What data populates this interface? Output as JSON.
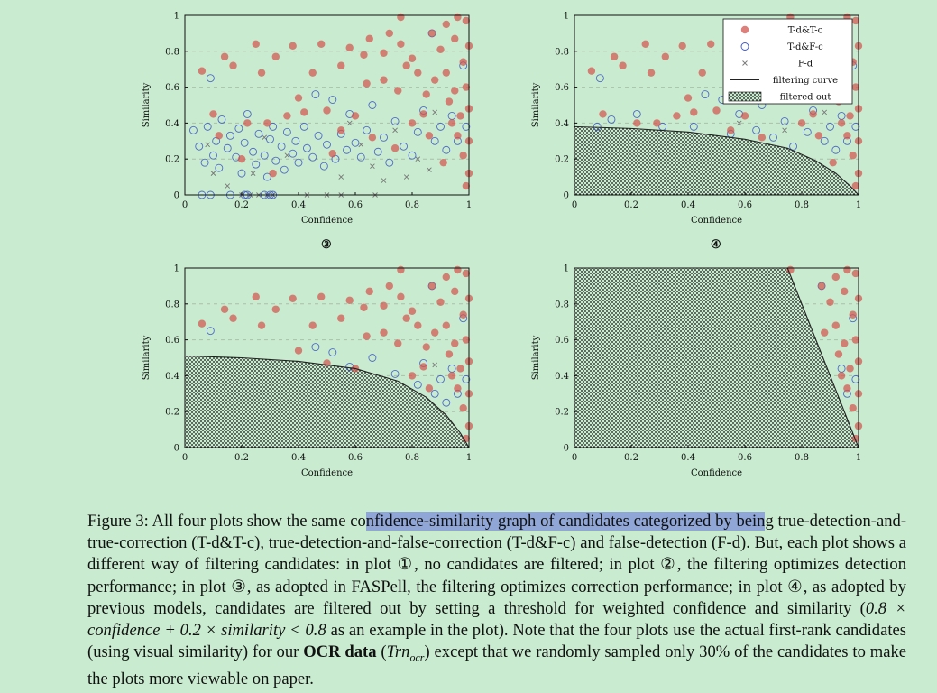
{
  "figure": {
    "axes": {
      "xlabel": "Confidence",
      "ylabel": "Similarity",
      "xticks": [
        "0",
        "0.2",
        "0.4",
        "0.6",
        "0.8",
        "1"
      ],
      "yticks": [
        "0",
        "0.2",
        "0.4",
        "0.6",
        "0.8",
        "1"
      ]
    },
    "plot_labels": {
      "plot3": "③",
      "plot4": "④"
    },
    "legend": [
      {
        "label": "T-d&T-c",
        "marker": "red-filled-circle"
      },
      {
        "label": "T-d&F-c",
        "marker": "blue-open-circle"
      },
      {
        "label": "F-d",
        "marker": "cross"
      },
      {
        "label": "filtering curve",
        "marker": "line"
      },
      {
        "label": "filtered-out",
        "marker": "hatch"
      }
    ],
    "colors": {
      "tdtc": "#d2544e",
      "tdfc": "#3a55c8",
      "fd": "#777777",
      "curve": "#222222",
      "background": "#c9ebcf"
    }
  },
  "chart_data": [
    {
      "type": "scatter",
      "panel": "plot1",
      "filter": "none",
      "xlim": [
        0,
        1
      ],
      "ylim": [
        0,
        1
      ],
      "grid": "dashed horizontal",
      "series": [
        {
          "name": "T-d&T-c",
          "points": [
            [
              0.06,
              0.69
            ],
            [
              0.1,
              0.45
            ],
            [
              0.14,
              0.77
            ],
            [
              0.17,
              0.72
            ],
            [
              0.25,
              0.84
            ],
            [
              0.27,
              0.68
            ],
            [
              0.32,
              0.77
            ],
            [
              0.38,
              0.83
            ],
            [
              0.4,
              0.54
            ],
            [
              0.45,
              0.68
            ],
            [
              0.48,
              0.84
            ],
            [
              0.55,
              0.72
            ],
            [
              0.58,
              0.82
            ],
            [
              0.63,
              0.78
            ],
            [
              0.64,
              0.62
            ],
            [
              0.65,
              0.87
            ],
            [
              0.7,
              0.64
            ],
            [
              0.7,
              0.79
            ],
            [
              0.72,
              0.9
            ],
            [
              0.75,
              0.58
            ],
            [
              0.76,
              0.84
            ],
            [
              0.78,
              0.72
            ],
            [
              0.8,
              0.76
            ],
            [
              0.82,
              0.68
            ],
            [
              0.85,
              0.56
            ],
            [
              0.87,
              0.9
            ],
            [
              0.88,
              0.64
            ],
            [
              0.9,
              0.81
            ],
            [
              0.92,
              0.68
            ],
            [
              0.93,
              0.52
            ],
            [
              0.94,
              0.4
            ],
            [
              0.95,
              0.87
            ],
            [
              0.95,
              0.58
            ],
            [
              0.96,
              0.33
            ],
            [
              0.97,
              0.44
            ],
            [
              0.98,
              0.74
            ],
            [
              0.98,
              0.22
            ],
            [
              0.99,
              0.97
            ],
            [
              0.99,
              0.6
            ],
            [
              1.0,
              0.48
            ],
            [
              1.0,
              0.3
            ],
            [
              1.0,
              0.12
            ],
            [
              1.0,
              0.83
            ],
            [
              0.99,
              0.05
            ],
            [
              0.91,
              0.18
            ],
            [
              0.86,
              0.33
            ],
            [
              0.8,
              0.4
            ],
            [
              0.74,
              0.26
            ],
            [
              0.66,
              0.32
            ],
            [
              0.6,
              0.44
            ],
            [
              0.55,
              0.36
            ],
            [
              0.5,
              0.47
            ],
            [
              0.42,
              0.46
            ],
            [
              0.36,
              0.44
            ],
            [
              0.29,
              0.4
            ],
            [
              0.22,
              0.4
            ],
            [
              0.12,
              0.33
            ],
            [
              0.31,
              0.12
            ],
            [
              0.52,
              0.23
            ],
            [
              0.2,
              0.2
            ],
            [
              0.84,
              0.45
            ],
            [
              0.92,
              0.95
            ],
            [
              0.76,
              0.99
            ],
            [
              0.96,
              0.99
            ]
          ]
        },
        {
          "name": "T-d&F-c",
          "points": [
            [
              0.03,
              0.36
            ],
            [
              0.05,
              0.27
            ],
            [
              0.07,
              0.18
            ],
            [
              0.08,
              0.38
            ],
            [
              0.09,
              0.65
            ],
            [
              0.1,
              0.22
            ],
            [
              0.11,
              0.3
            ],
            [
              0.12,
              0.15
            ],
            [
              0.13,
              0.42
            ],
            [
              0.15,
              0.26
            ],
            [
              0.16,
              0.33
            ],
            [
              0.18,
              0.21
            ],
            [
              0.19,
              0.37
            ],
            [
              0.2,
              0.12
            ],
            [
              0.21,
              0.29
            ],
            [
              0.22,
              0.45
            ],
            [
              0.24,
              0.24
            ],
            [
              0.25,
              0.17
            ],
            [
              0.26,
              0.34
            ],
            [
              0.28,
              0.22
            ],
            [
              0.29,
              0.1
            ],
            [
              0.3,
              0.31
            ],
            [
              0.31,
              0.38
            ],
            [
              0.32,
              0.19
            ],
            [
              0.34,
              0.27
            ],
            [
              0.35,
              0.14
            ],
            [
              0.36,
              0.35
            ],
            [
              0.38,
              0.23
            ],
            [
              0.39,
              0.3
            ],
            [
              0.4,
              0.18
            ],
            [
              0.42,
              0.38
            ],
            [
              0.43,
              0.26
            ],
            [
              0.45,
              0.21
            ],
            [
              0.46,
              0.56
            ],
            [
              0.47,
              0.33
            ],
            [
              0.49,
              0.16
            ],
            [
              0.5,
              0.28
            ],
            [
              0.52,
              0.53
            ],
            [
              0.53,
              0.2
            ],
            [
              0.55,
              0.34
            ],
            [
              0.57,
              0.25
            ],
            [
              0.58,
              0.45
            ],
            [
              0.6,
              0.29
            ],
            [
              0.62,
              0.21
            ],
            [
              0.64,
              0.36
            ],
            [
              0.66,
              0.5
            ],
            [
              0.68,
              0.24
            ],
            [
              0.7,
              0.32
            ],
            [
              0.72,
              0.18
            ],
            [
              0.74,
              0.41
            ],
            [
              0.77,
              0.27
            ],
            [
              0.8,
              0.22
            ],
            [
              0.82,
              0.35
            ],
            [
              0.84,
              0.47
            ],
            [
              0.87,
              0.9
            ],
            [
              0.88,
              0.3
            ],
            [
              0.9,
              0.38
            ],
            [
              0.92,
              0.25
            ],
            [
              0.94,
              0.44
            ],
            [
              0.96,
              0.3
            ],
            [
              0.98,
              0.72
            ],
            [
              0.99,
              0.38
            ],
            [
              0.06,
              0.0
            ],
            [
              0.09,
              0.0
            ],
            [
              0.16,
              0.0
            ],
            [
              0.22,
              0.0
            ],
            [
              0.28,
              0.0
            ],
            [
              0.3,
              0.0
            ],
            [
              0.31,
              0.0
            ],
            [
              0.21,
              0.0
            ]
          ]
        },
        {
          "name": "F-d",
          "points": [
            [
              0.08,
              0.28
            ],
            [
              0.1,
              0.12
            ],
            [
              0.15,
              0.05
            ],
            [
              0.2,
              0.0
            ],
            [
              0.23,
              0.0
            ],
            [
              0.26,
              0.0
            ],
            [
              0.29,
              0.0
            ],
            [
              0.31,
              0.0
            ],
            [
              0.24,
              0.12
            ],
            [
              0.28,
              0.32
            ],
            [
              0.36,
              0.22
            ],
            [
              0.43,
              0.0
            ],
            [
              0.5,
              0.0
            ],
            [
              0.55,
              0.1
            ],
            [
              0.58,
              0.4
            ],
            [
              0.62,
              0.28
            ],
            [
              0.66,
              0.16
            ],
            [
              0.7,
              0.08
            ],
            [
              0.74,
              0.36
            ],
            [
              0.78,
              0.1
            ],
            [
              0.82,
              0.2
            ],
            [
              0.86,
              0.14
            ],
            [
              0.88,
              0.46
            ],
            [
              0.55,
              0.0
            ],
            [
              0.67,
              0.0
            ]
          ]
        }
      ]
    },
    {
      "type": "scatter",
      "panel": "plot2",
      "filter": "curve optimizing detection",
      "filtering_curve": [
        [
          0,
          0.38
        ],
        [
          0.2,
          0.37
        ],
        [
          0.4,
          0.35
        ],
        [
          0.6,
          0.31
        ],
        [
          0.75,
          0.26
        ],
        [
          0.85,
          0.19
        ],
        [
          0.92,
          0.12
        ],
        [
          0.97,
          0.05
        ],
        [
          1.0,
          0.0
        ]
      ]
    },
    {
      "type": "scatter",
      "panel": "plot3",
      "filter": "curve optimizing correction (FASPell)",
      "filtering_curve": [
        [
          0,
          0.51
        ],
        [
          0.2,
          0.5
        ],
        [
          0.4,
          0.48
        ],
        [
          0.6,
          0.44
        ],
        [
          0.75,
          0.37
        ],
        [
          0.85,
          0.28
        ],
        [
          0.92,
          0.18
        ],
        [
          0.97,
          0.08
        ],
        [
          1.0,
          0.0
        ]
      ]
    },
    {
      "type": "scatter",
      "panel": "plot4",
      "filter": "threshold 0.8*confidence + 0.2*similarity < 0.8",
      "filtering_curve": [
        [
          0.75,
          1.0
        ],
        [
          1.0,
          0.0
        ]
      ]
    }
  ],
  "caption": {
    "p1": "Figure 3:   All four plots show the same co",
    "hl": "nfidence-similarity graph of candidates categorized by bein",
    "p2": "g true-detection-and-true-correction (T-d&T-c), true-detection-and-false-correction (T-d&F-c) and false-detection (F-d). But, each plot shows a different way of filtering candidates: in plot ①, no candidates are filtered; in plot ②, the filtering optimizes detection performance; in plot ③, as adopted in FASPell, the filtering optimizes correction performance; in plot ④, as adopted by previous models, candidates are filtered out by setting a threshold for weighted confidence and similarity (",
    "m1": "0.8 × confidence + 0.2 × similarity < 0.8",
    "p3": " as an example in the plot). Note that the four plots use the actual first-rank candidates (using visual similarity) for our ",
    "bold": "OCR data",
    "p4": " (",
    "m2": "Trn",
    "m2sub": "ocr",
    "p5": ") except that we randomly sampled only 30% of the candidates to make the plots more viewable on paper."
  }
}
